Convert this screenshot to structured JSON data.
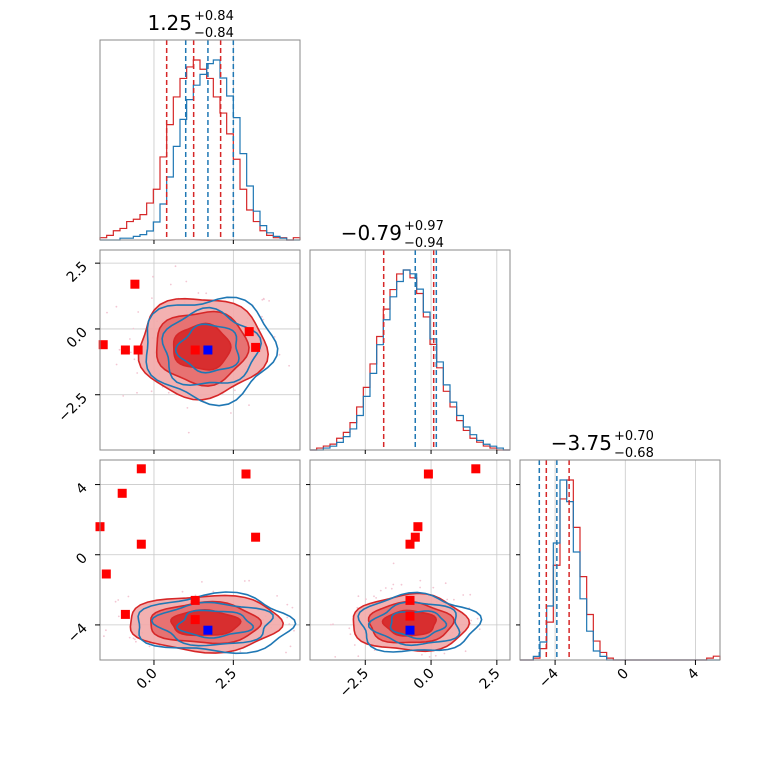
{
  "colors": {
    "blue": "#1f77b4",
    "red": "#d62728",
    "red_fill_light": "#f2a8a8",
    "red_fill_mid": "#e56b6b",
    "red_fill_dark": "#d62728",
    "truth_marker_blue": "#0000ff",
    "truth_marker_red": "#ff0000",
    "scatter_pink": "#f3c6d3",
    "grid": "#c8c8c8"
  },
  "chart_data": {
    "type": "corner",
    "grid": true,
    "parameters": [
      {
        "id": "p1",
        "range": [
          -1.7,
          4.6
        ],
        "tick_values": [
          0,
          2.5
        ],
        "tick_labels": [
          "0.0",
          "2.5"
        ],
        "title": {
          "main": "1.25",
          "plus": "+0.84",
          "minus": "−0.84"
        },
        "quantiles": {
          "blue": [
            1.0,
            1.7,
            2.5
          ],
          "red": [
            0.4,
            1.25,
            2.1
          ]
        },
        "hist_blue": [
          0,
          0,
          0,
          1,
          1,
          2,
          3,
          5,
          10,
          20,
          35,
          52,
          67,
          78,
          86,
          92,
          98,
          100,
          90,
          80,
          68,
          48,
          30,
          16,
          8,
          4,
          2,
          1,
          0,
          0
        ],
        "hist_red": [
          1,
          2,
          4,
          5,
          8,
          9,
          11,
          16,
          22,
          36,
          50,
          62,
          70,
          75,
          78,
          74,
          70,
          62,
          55,
          46,
          35,
          22,
          13,
          8,
          4,
          2,
          1,
          1,
          0,
          1
        ]
      },
      {
        "id": "p2",
        "range": [
          -4.6,
          3.0
        ],
        "tick_values": [
          -2.5,
          0,
          2.5
        ],
        "tick_labels": [
          "−2.5",
          "0.0",
          "2.5"
        ],
        "title": {
          "main": "−0.79",
          "plus": "+0.97",
          "minus": "−0.94"
        },
        "quantiles": {
          "blue": [
            -0.6,
            0.2
          ],
          "red": [
            -1.8,
            0.1
          ]
        },
        "hist_blue": [
          0,
          0,
          1,
          2,
          4,
          7,
          11,
          18,
          28,
          40,
          55,
          68,
          80,
          88,
          94,
          92,
          84,
          72,
          58,
          46,
          34,
          25,
          18,
          12,
          8,
          5,
          3,
          2,
          1,
          0
        ],
        "hist_red": [
          0,
          1,
          2,
          3,
          6,
          9,
          14,
          22,
          32,
          44,
          58,
          72,
          82,
          90,
          92,
          88,
          80,
          68,
          54,
          42,
          30,
          22,
          15,
          10,
          6,
          4,
          2,
          1,
          0,
          0
        ]
      },
      {
        "id": "p3",
        "range": [
          -6.0,
          5.4
        ],
        "tick_values": [
          -4,
          0,
          4
        ],
        "tick_labels": [
          "−4",
          "0",
          "4"
        ],
        "title": {
          "main": "−3.75",
          "plus": "+0.70",
          "minus": "−0.68"
        },
        "quantiles": {
          "blue": [
            -4.9,
            -3.9
          ],
          "red": [
            -4.5,
            -3.2
          ]
        },
        "hist_blue": [
          0,
          0,
          2,
          10,
          30,
          65,
          100,
          88,
          60,
          34,
          16,
          5,
          2,
          0,
          0,
          0,
          0,
          0,
          0,
          0,
          0,
          0,
          0,
          0,
          0,
          0,
          0,
          0,
          0,
          0
        ],
        "hist_red": [
          0,
          0,
          1,
          6,
          20,
          50,
          85,
          95,
          70,
          44,
          24,
          10,
          4,
          1,
          0,
          0,
          0,
          0,
          0,
          0,
          0,
          0,
          0,
          0,
          0,
          0,
          0,
          0,
          1,
          2
        ]
      }
    ],
    "panels_2d": [
      {
        "x_param": 0,
        "y_param": 1,
        "center": [
          1.5,
          -0.7
        ],
        "spread": [
          1.0,
          0.95
        ],
        "red_markers": [
          [
            -1.6,
            -0.6
          ],
          [
            -0.6,
            1.7
          ],
          [
            -0.9,
            -0.8
          ],
          [
            -0.5,
            -0.8
          ],
          [
            1.3,
            -0.8
          ],
          [
            3.0,
            -0.1
          ],
          [
            3.2,
            -0.7
          ]
        ],
        "blue_markers": [
          [
            1.7,
            -0.8
          ]
        ]
      },
      {
        "x_param": 0,
        "y_param": 2,
        "center": [
          1.6,
          -3.9
        ],
        "spread": [
          1.2,
          0.8
        ],
        "red_markers": [
          [
            -0.4,
            4.9
          ],
          [
            -1.0,
            3.5
          ],
          [
            -1.7,
            1.6
          ],
          [
            -0.4,
            0.6
          ],
          [
            -1.5,
            -1.1
          ],
          [
            2.9,
            4.6
          ],
          [
            3.2,
            1.0
          ],
          [
            -0.9,
            -3.4
          ],
          [
            1.3,
            -2.6
          ],
          [
            1.3,
            -3.7
          ]
        ],
        "blue_markers": [
          [
            1.7,
            -4.3
          ]
        ]
      },
      {
        "x_param": 1,
        "y_param": 2,
        "center": [
          -0.8,
          -3.9
        ],
        "spread": [
          1.1,
          0.8
        ],
        "red_markers": [
          [
            1.7,
            4.9
          ],
          [
            -0.1,
            4.6
          ],
          [
            -0.5,
            1.6
          ],
          [
            -0.6,
            1.0
          ],
          [
            -0.8,
            0.6
          ],
          [
            -0.8,
            -2.6
          ],
          [
            -0.8,
            -3.5
          ]
        ],
        "blue_markers": [
          [
            -0.8,
            -4.3
          ]
        ]
      }
    ]
  }
}
